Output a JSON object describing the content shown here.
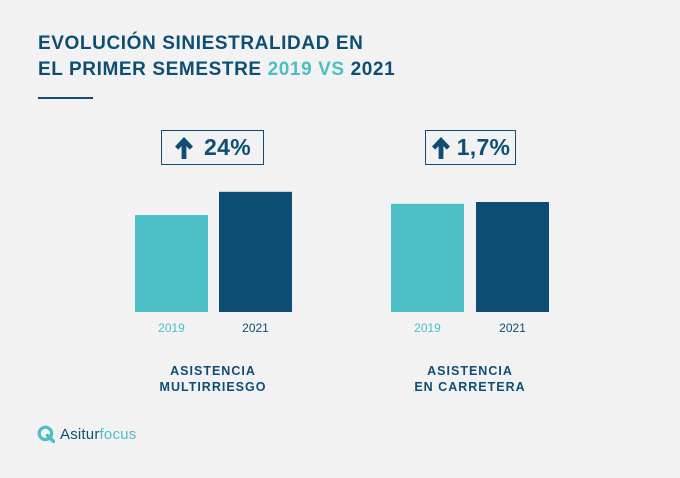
{
  "title": {
    "line1": "EVOLUCIÓN SINIESTRALIDAD EN",
    "line2_prefix": "EL PRIMER SEMESTRE ",
    "year_a": "2019",
    "vs": " VS ",
    "year_b": "2021"
  },
  "colors": {
    "series_2019": "#4cbfc4",
    "series_2021": "#0e4e75",
    "text": "#0e4e75"
  },
  "brand": {
    "name_main": "Asitur",
    "name_light": "focus",
    "icon": "q-logo-icon"
  },
  "chart_data": [
    {
      "type": "bar",
      "group_label": "ASISTENCIA\nMULTIRRIESGO",
      "change_label": "24%",
      "change_direction": "up",
      "change_icon": "arrow-up-icon",
      "categories": [
        "2019",
        "2021"
      ],
      "values": [
        100,
        124
      ],
      "ylim": [
        0,
        130
      ],
      "grid": false,
      "legend": "none"
    },
    {
      "type": "bar",
      "group_label": "ASISTENCIA\nEN CARRETERA",
      "change_label": "1,7%",
      "change_direction": "up",
      "change_icon": "arrow-up-icon",
      "categories": [
        "2019",
        "2021"
      ],
      "values": [
        100,
        101.7
      ],
      "ylim": [
        0,
        101.7
      ],
      "grid": false,
      "legend": "none"
    }
  ]
}
